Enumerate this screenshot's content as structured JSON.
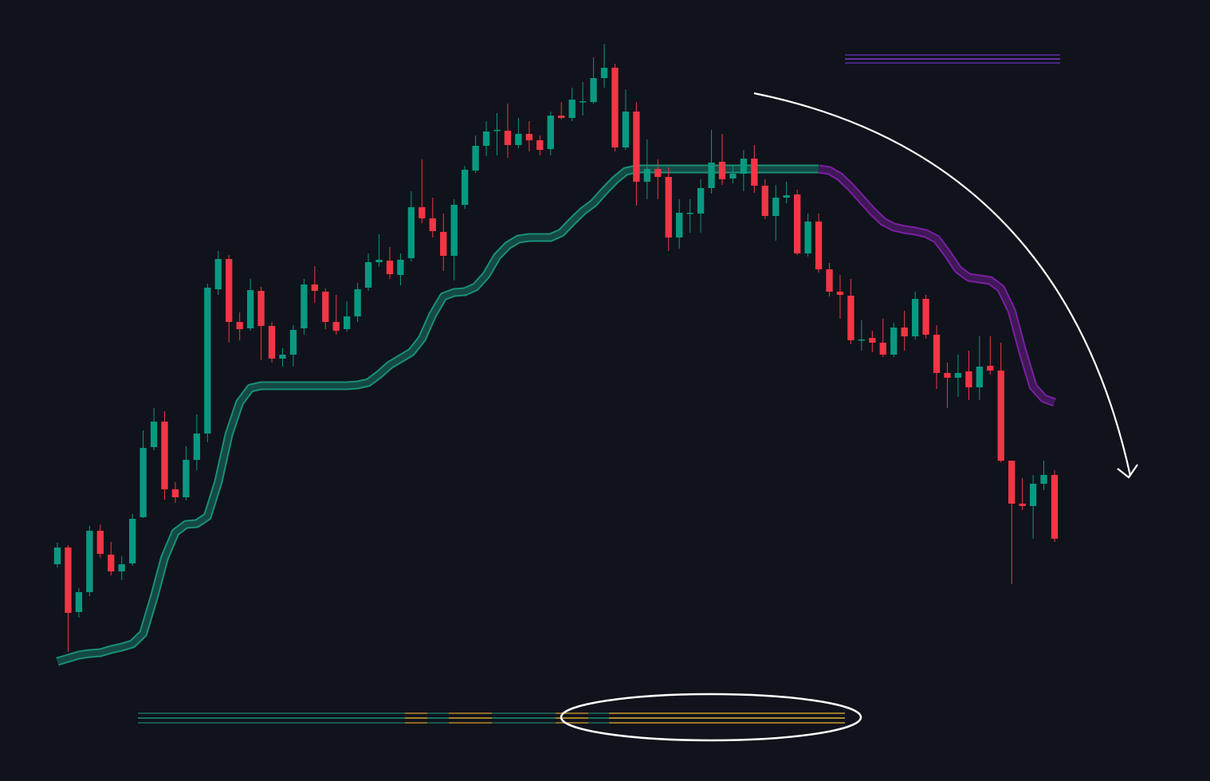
{
  "chart_data": {
    "type": "candlestick",
    "ylim": [
      0,
      980
    ],
    "up_color": "#089981",
    "down_color": "#f23645",
    "values": [
      [
        272,
        299,
        268,
        293
      ],
      [
        293,
        296,
        162,
        211
      ],
      [
        212,
        242,
        205,
        237
      ],
      [
        237,
        320,
        232,
        314
      ],
      [
        314,
        322,
        280,
        285
      ],
      [
        284,
        300,
        258,
        263
      ],
      [
        263,
        282,
        252,
        272
      ],
      [
        273,
        335,
        270,
        329
      ],
      [
        331,
        440,
        330,
        418
      ],
      [
        419,
        468,
        415,
        451
      ],
      [
        451,
        464,
        353,
        366
      ],
      [
        366,
        375,
        349,
        356
      ],
      [
        356,
        420,
        352,
        403
      ],
      [
        403,
        460,
        390,
        436
      ],
      [
        436,
        624,
        425,
        619
      ],
      [
        617,
        665,
        610,
        655
      ],
      [
        655,
        660,
        550,
        576
      ],
      [
        576,
        588,
        553,
        567
      ],
      [
        568,
        630,
        565,
        616
      ],
      [
        615,
        620,
        528,
        571
      ],
      [
        571,
        576,
        525,
        530
      ],
      [
        530,
        543,
        520,
        535
      ],
      [
        535,
        572,
        520,
        566
      ],
      [
        568,
        630,
        560,
        623
      ],
      [
        623,
        646,
        600,
        615
      ],
      [
        614,
        618,
        567,
        576
      ],
      [
        576,
        610,
        560,
        565
      ],
      [
        567,
        602,
        564,
        583
      ],
      [
        583,
        625,
        576,
        617
      ],
      [
        619,
        662,
        615,
        651
      ],
      [
        651,
        686,
        645,
        654
      ],
      [
        653,
        670,
        630,
        636
      ],
      [
        635,
        662,
        622,
        654
      ],
      [
        656,
        740,
        652,
        720
      ],
      [
        720,
        780,
        700,
        706
      ],
      [
        706,
        732,
        682,
        690
      ],
      [
        689,
        712,
        640,
        659
      ],
      [
        659,
        730,
        628,
        723
      ],
      [
        723,
        772,
        718,
        767
      ],
      [
        766,
        810,
        763,
        797
      ],
      [
        797,
        828,
        784,
        815
      ],
      [
        816,
        838,
        785,
        817
      ],
      [
        816,
        850,
        782,
        798
      ],
      [
        798,
        832,
        794,
        812
      ],
      [
        812,
        828,
        790,
        804
      ],
      [
        804,
        810,
        785,
        792
      ],
      [
        793,
        840,
        785,
        835
      ],
      [
        835,
        852,
        830,
        832
      ],
      [
        832,
        870,
        828,
        855
      ],
      [
        852,
        877,
        835,
        853
      ],
      [
        852,
        908,
        850,
        882
      ],
      [
        882,
        925,
        870,
        895
      ],
      [
        895,
        900,
        790,
        795
      ],
      [
        795,
        868,
        792,
        840
      ],
      [
        840,
        852,
        722,
        752
      ],
      [
        752,
        805,
        730,
        768
      ],
      [
        768,
        780,
        730,
        758
      ],
      [
        758,
        770,
        665,
        682
      ],
      [
        682,
        730,
        668,
        713
      ],
      [
        712,
        730,
        688,
        713
      ],
      [
        712,
        755,
        688,
        744
      ],
      [
        744,
        817,
        737,
        776
      ],
      [
        777,
        812,
        748,
        755
      ],
      [
        756,
        772,
        750,
        762
      ],
      [
        762,
        792,
        740,
        781
      ],
      [
        781,
        798,
        738,
        747
      ],
      [
        747,
        755,
        705,
        709
      ],
      [
        709,
        748,
        678,
        732
      ],
      [
        732,
        752,
        725,
        735
      ],
      [
        736,
        742,
        660,
        662
      ],
      [
        662,
        712,
        658,
        702
      ],
      [
        702,
        712,
        638,
        642
      ],
      [
        642,
        650,
        608,
        614
      ],
      [
        614,
        635,
        580,
        610
      ],
      [
        609,
        630,
        548,
        553
      ],
      [
        553,
        578,
        540,
        554
      ],
      [
        556,
        565,
        538,
        550
      ],
      [
        550,
        580,
        532,
        535
      ],
      [
        535,
        575,
        532,
        569
      ],
      [
        569,
        590,
        540,
        558
      ],
      [
        558,
        614,
        554,
        605
      ],
      [
        605,
        610,
        555,
        560
      ],
      [
        560,
        572,
        492,
        512
      ],
      [
        512,
        525,
        468,
        506
      ],
      [
        506,
        535,
        482,
        512
      ],
      [
        514,
        540,
        478,
        494
      ],
      [
        494,
        558,
        478,
        520
      ],
      [
        521,
        558,
        510,
        515
      ],
      [
        515,
        550,
        400,
        402
      ],
      [
        402,
        402,
        247,
        348
      ],
      [
        348,
        380,
        340,
        345
      ],
      [
        345,
        384,
        304,
        373
      ],
      [
        373,
        402,
        365,
        384
      ],
      [
        384,
        390,
        300,
        304
      ]
    ],
    "series": [
      {
        "color": "#1a8f78",
        "values": [
          150,
          154,
          158,
          160,
          161,
          165,
          168,
          172,
          185,
          230,
          280,
          312,
          322,
          323,
          332,
          375,
          435,
          475,
          493,
          496,
          496,
          496,
          496,
          496,
          496,
          496,
          496,
          496,
          497,
          500,
          510,
          522,
          530,
          538,
          555,
          585,
          608,
          613,
          614,
          620,
          635,
          658,
          672,
          680,
          682,
          682,
          682,
          688,
          702,
          715,
          725,
          740,
          754,
          765,
          768,
          768,
          768,
          768,
          768,
          768,
          768,
          768,
          768,
          768,
          768,
          768,
          768,
          768,
          768,
          768,
          768,
          768,
          null,
          null,
          null,
          null,
          null,
          null,
          null,
          null,
          null,
          null,
          null,
          null,
          null,
          null,
          null,
          null,
          null,
          null,
          null,
          null,
          null,
          null
        ]
      },
      {
        "color": "#7b1fa2",
        "values": [
          null,
          null,
          null,
          null,
          null,
          null,
          null,
          null,
          null,
          null,
          null,
          null,
          null,
          null,
          null,
          null,
          null,
          null,
          null,
          null,
          null,
          null,
          null,
          null,
          null,
          null,
          null,
          null,
          null,
          null,
          null,
          null,
          null,
          null,
          null,
          null,
          null,
          null,
          null,
          null,
          null,
          null,
          null,
          null,
          null,
          null,
          null,
          null,
          null,
          null,
          null,
          null,
          null,
          null,
          null,
          null,
          null,
          null,
          null,
          null,
          null,
          null,
          null,
          null,
          null,
          null,
          null,
          null,
          null,
          null,
          null,
          768,
          766,
          758,
          745,
          730,
          715,
          702,
          695,
          692,
          690,
          687,
          680,
          662,
          642,
          632,
          630,
          628,
          618,
          590,
          540,
          495,
          480,
          475
        ]
      }
    ]
  }
}
